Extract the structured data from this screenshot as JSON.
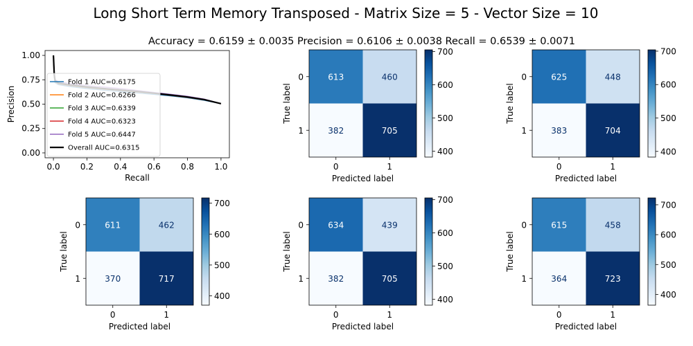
{
  "figure": {
    "title": "Long Short Term Memory Transposed - Matrix Size = 5  - Vector Size = 10",
    "subtitle": "Accuracy = 0.6159 ± 0.0035 Precision = 0.6106 ± 0.0038 Recall = 0.6539 ± 0.0071"
  },
  "chart_data": [
    {
      "type": "line",
      "xlabel": "Recall",
      "ylabel": "Precision",
      "xlim": [
        -0.05,
        1.05
      ],
      "ylim": [
        -0.05,
        1.05
      ],
      "xticks": [
        "0.0",
        "0.2",
        "0.4",
        "0.6",
        "0.8",
        "1.0"
      ],
      "yticks": [
        "0.00",
        "0.25",
        "0.50",
        "0.75",
        "1.00"
      ],
      "legend_position": "center-left",
      "series": [
        {
          "name": "Fold 1 AUC=0.6175",
          "color": "#1f77b4",
          "x": [
            0.0,
            0.005,
            0.01,
            0.03,
            0.1,
            0.2,
            0.3,
            0.4,
            0.5,
            0.6,
            0.7,
            0.8,
            0.9,
            1.0
          ],
          "y": [
            1.0,
            0.78,
            0.72,
            0.7,
            0.68,
            0.66,
            0.645,
            0.63,
            0.615,
            0.6,
            0.585,
            0.565,
            0.54,
            0.505
          ]
        },
        {
          "name": "Fold 2 AUC=0.6266",
          "color": "#ff7f0e",
          "x": [
            0.0,
            0.005,
            0.01,
            0.03,
            0.1,
            0.2,
            0.3,
            0.4,
            0.5,
            0.6,
            0.7,
            0.8,
            0.9,
            1.0
          ],
          "y": [
            1.0,
            0.79,
            0.73,
            0.71,
            0.69,
            0.67,
            0.655,
            0.64,
            0.625,
            0.61,
            0.59,
            0.57,
            0.545,
            0.505
          ]
        },
        {
          "name": "Fold 3 AUC=0.6339",
          "color": "#2ca02c",
          "x": [
            0.0,
            0.005,
            0.01,
            0.03,
            0.1,
            0.2,
            0.3,
            0.4,
            0.5,
            0.6,
            0.7,
            0.8,
            0.9,
            1.0
          ],
          "y": [
            1.0,
            0.8,
            0.74,
            0.72,
            0.7,
            0.68,
            0.66,
            0.645,
            0.63,
            0.615,
            0.595,
            0.575,
            0.548,
            0.505
          ]
        },
        {
          "name": "Fold 4 AUC=0.6323",
          "color": "#d62728",
          "x": [
            0.0,
            0.005,
            0.01,
            0.03,
            0.1,
            0.2,
            0.3,
            0.4,
            0.5,
            0.6,
            0.7,
            0.8,
            0.9,
            1.0
          ],
          "y": [
            1.0,
            0.8,
            0.735,
            0.715,
            0.695,
            0.675,
            0.66,
            0.645,
            0.63,
            0.612,
            0.593,
            0.573,
            0.547,
            0.505
          ]
        },
        {
          "name": "Fold 5 AUC=0.6447",
          "color": "#9467bd",
          "x": [
            0.0,
            0.005,
            0.01,
            0.03,
            0.1,
            0.2,
            0.3,
            0.4,
            0.5,
            0.6,
            0.7,
            0.8,
            0.9,
            1.0
          ],
          "y": [
            1.0,
            0.82,
            0.75,
            0.73,
            0.71,
            0.69,
            0.675,
            0.66,
            0.64,
            0.62,
            0.6,
            0.58,
            0.552,
            0.505
          ]
        },
        {
          "name": "Overall AUC=0.6315",
          "color": "#000000",
          "x": [
            0.0,
            0.005,
            0.01,
            0.03,
            0.1,
            0.2,
            0.3,
            0.4,
            0.5,
            0.6,
            0.7,
            0.8,
            0.9,
            1.0
          ],
          "y": [
            1.0,
            0.8,
            0.74,
            0.715,
            0.695,
            0.675,
            0.66,
            0.645,
            0.63,
            0.612,
            0.593,
            0.573,
            0.547,
            0.505
          ]
        }
      ]
    },
    {
      "type": "heatmap",
      "xlabel": "Predicted label",
      "ylabel": "True label",
      "x_categories": [
        "0",
        "1"
      ],
      "y_categories": [
        "0",
        "1"
      ],
      "values": [
        [
          613,
          460
        ],
        [
          382,
          705
        ]
      ],
      "colorbar_ticks": [
        400,
        500,
        600,
        700
      ]
    },
    {
      "type": "heatmap",
      "xlabel": "Predicted label",
      "ylabel": "True label",
      "x_categories": [
        "0",
        "1"
      ],
      "y_categories": [
        "0",
        "1"
      ],
      "values": [
        [
          625,
          448
        ],
        [
          383,
          704
        ]
      ],
      "colorbar_ticks": [
        400,
        500,
        600,
        700
      ]
    },
    {
      "type": "heatmap",
      "xlabel": "Predicted label",
      "ylabel": "True label",
      "x_categories": [
        "0",
        "1"
      ],
      "y_categories": [
        "0",
        "1"
      ],
      "values": [
        [
          611,
          462
        ],
        [
          370,
          717
        ]
      ],
      "colorbar_ticks": [
        400,
        500,
        600,
        700
      ]
    },
    {
      "type": "heatmap",
      "xlabel": "Predicted label",
      "ylabel": "True label",
      "x_categories": [
        "0",
        "1"
      ],
      "y_categories": [
        "0",
        "1"
      ],
      "values": [
        [
          634,
          439
        ],
        [
          382,
          705
        ]
      ],
      "colorbar_ticks": [
        400,
        500,
        600,
        700
      ]
    },
    {
      "type": "heatmap",
      "xlabel": "Predicted label",
      "ylabel": "True label",
      "x_categories": [
        "0",
        "1"
      ],
      "y_categories": [
        "0",
        "1"
      ],
      "values": [
        [
          615,
          458
        ],
        [
          364,
          723
        ]
      ],
      "colorbar_ticks": [
        400,
        500,
        600,
        700
      ]
    }
  ]
}
